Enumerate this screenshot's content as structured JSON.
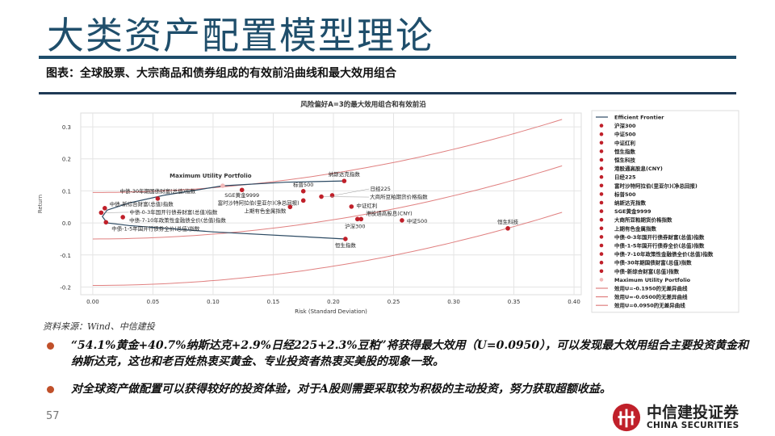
{
  "slide": {
    "title": "大类资产配置模型理论",
    "subtitle": "图表：全球股票、大宗商品和债券组成的有效前沿曲线和最大效用组合",
    "source": "资料来源：Wind、中信建投",
    "bullets": [
      "“54.1%黄金+40.7%纳斯达克+2.9%日经225+2.3%豆粕”将获得最大效用（U=0.0950），可以发现最大效用组合主要投资黄金和纳斯达克，这也和老百姓热衷买黄金、专业投资者热衷买美股的现象一致。",
      "对全球资产做配置可以获得较好的投资体验，对于A股则需要采取较为积极的主动投资，努力获取超额收益。"
    ],
    "page_number": "57",
    "logo": {
      "cn": "中信建投证券",
      "en": "CHINA SECURITIES"
    },
    "colors": {
      "title": "#1f4e6b",
      "bullet": "#c0502a",
      "logo": "#c0202a"
    }
  },
  "chart_data": {
    "type": "scatter",
    "title": "风险偏好A=3的最大效用组合和有效前沿",
    "xlabel": "Risk (Standard Deviation)",
    "ylabel": "Return",
    "xlim": [
      -0.01,
      0.406
    ],
    "ylim": [
      -0.224,
      0.343
    ],
    "xticks": [
      "0.00",
      "0.05",
      "0.10",
      "0.15",
      "0.20",
      "0.25",
      "0.30",
      "0.35",
      "0.40"
    ],
    "yticks": [
      "-0.2",
      "-0.1",
      "0.0",
      "0.1",
      "0.2",
      "0.3"
    ],
    "grid": true,
    "legend_placement": "right-outside",
    "risk_aversion_A": 3,
    "frontier": {
      "name": "Efficient Frontier",
      "color": "#2c4a63",
      "points": [
        [
          0.21,
          -0.05
        ],
        [
          0.1,
          -0.028
        ],
        [
          0.03,
          -0.008
        ],
        [
          0.012,
          0.0
        ],
        [
          0.008,
          0.02
        ],
        [
          0.012,
          0.04
        ],
        [
          0.03,
          0.062
        ],
        [
          0.06,
          0.087
        ],
        [
          0.108,
          0.116
        ],
        [
          0.16,
          0.127
        ],
        [
          0.209,
          0.131
        ]
      ]
    },
    "assets": [
      {
        "name": "沪深300",
        "x": 0.22,
        "y": 0.012
      },
      {
        "name": "中证500",
        "x": 0.257,
        "y": 0.008
      },
      {
        "name": "中证红利",
        "x": 0.215,
        "y": 0.051
      },
      {
        "name": "恒生指数",
        "x": 0.21,
        "y": -0.05
      },
      {
        "name": "恒生科技",
        "x": 0.345,
        "y": -0.017
      },
      {
        "name": "港股通高股息(CNY)",
        "x": 0.223,
        "y": 0.012
      },
      {
        "name": "日经225",
        "x": 0.199,
        "y": 0.086
      },
      {
        "name": "富时沙特阿拉伯(里亚尔)(净总回报)",
        "x": 0.175,
        "y": 0.07
      },
      {
        "name": "标普500",
        "x": 0.175,
        "y": 0.099
      },
      {
        "name": "纳斯达克指数",
        "x": 0.209,
        "y": 0.131
      },
      {
        "name": "SGE黄金9999",
        "x": 0.124,
        "y": 0.103
      },
      {
        "name": "大商所豆粕期货价格指数",
        "x": 0.19,
        "y": 0.082
      },
      {
        "name": "上期有色金属指数",
        "x": 0.164,
        "y": 0.05
      },
      {
        "name": "中债-0-3年国开行债券财富(总值)指数",
        "x": 0.007,
        "y": 0.032
      },
      {
        "name": "中债-1-5年国开行债券全价(总值)指数",
        "x": 0.011,
        "y": 0.002
      },
      {
        "name": "中债-7-10年政策性金融债全价(总值)指数",
        "x": 0.025,
        "y": 0.018
      },
      {
        "name": "中债-30年期国债财富(总值)指数",
        "x": 0.054,
        "y": 0.076
      },
      {
        "name": "中债-新综合财富(总值)指数",
        "x": 0.01,
        "y": 0.046
      }
    ],
    "asset_color": "#c0202a",
    "max_utility_portfolio": {
      "name": "Maximum Utility Portfolio",
      "x": 0.108,
      "y": 0.116,
      "color": "#f2b8b8"
    },
    "indifference_curves": [
      {
        "name": "效用U=-0.1950的无差异曲线",
        "U": -0.195
      },
      {
        "name": "效用U=-0.0500的无差异曲线",
        "U": -0.05
      },
      {
        "name": "效用U=0.0950的无差异曲线",
        "U": 0.095
      }
    ],
    "curve_color": "#e08080",
    "curve_x_range": [
      0,
      0.39
    ]
  }
}
